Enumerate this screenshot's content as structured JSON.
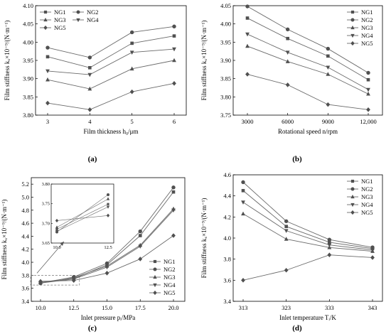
{
  "chart_data": [
    {
      "type": "line",
      "panel_label": "(a)",
      "xlabel": "Film thickness h₀/μm",
      "ylabel": "Film stiffness kₓ×10⁻⁹/(N·m⁻¹)",
      "categories": [
        "3",
        "4",
        "5",
        "6"
      ],
      "ylim": [
        3.8,
        4.1
      ],
      "yticks": [
        "3.80",
        "3.85",
        "3.90",
        "3.95",
        "4.00",
        "4.05",
        "4.10"
      ],
      "yticks_values": [
        3.8,
        3.85,
        3.9,
        3.95,
        4.0,
        4.05,
        4.1
      ],
      "legend_position": "top-left",
      "series": [
        {
          "name": "NG1",
          "marker": "square",
          "values": [
            3.96,
            3.93,
            3.997,
            4.017
          ]
        },
        {
          "name": "NG2",
          "marker": "circle",
          "values": [
            3.985,
            3.958,
            4.027,
            4.043
          ]
        },
        {
          "name": "NG3",
          "marker": "triangle",
          "values": [
            3.897,
            3.872,
            3.927,
            3.95
          ]
        },
        {
          "name": "NG4",
          "marker": "tri-down",
          "values": [
            3.921,
            3.911,
            3.972,
            3.981
          ]
        },
        {
          "name": "NG5",
          "marker": "diamond",
          "values": [
            3.833,
            3.815,
            3.864,
            3.887
          ]
        }
      ]
    },
    {
      "type": "line",
      "panel_label": "(b)",
      "xlabel": "Rotational speed n/rpm",
      "ylabel": "Film stiffness kₓ×10⁻⁹/(N·m⁻¹)",
      "categories": [
        "3000",
        "6000",
        "9000",
        "12,000"
      ],
      "ylim": [
        3.75,
        4.05
      ],
      "yticks": [
        "3.75",
        "3.80",
        "3.85",
        "3.90",
        "3.95",
        "4.00",
        "4.05"
      ],
      "yticks_values": [
        3.75,
        3.8,
        3.85,
        3.9,
        3.95,
        4.0,
        4.05
      ],
      "legend_position": "top-right",
      "series": [
        {
          "name": "NG1",
          "marker": "square",
          "values": [
            4.016,
            3.96,
            3.912,
            3.847
          ]
        },
        {
          "name": "NG2",
          "marker": "circle",
          "values": [
            4.048,
            3.985,
            3.932,
            3.866
          ]
        },
        {
          "name": "NG3",
          "marker": "triangle",
          "values": [
            3.939,
            3.897,
            3.862,
            3.808
          ]
        },
        {
          "name": "NG4",
          "marker": "tri-down",
          "values": [
            3.972,
            3.922,
            3.881,
            3.82
          ]
        },
        {
          "name": "NG5",
          "marker": "diamond",
          "values": [
            3.862,
            3.833,
            3.779,
            3.765
          ]
        }
      ]
    },
    {
      "type": "line",
      "panel_label": "(c)",
      "xlabel": "Inlet pressure pᵢ/MPa",
      "ylabel": "Film stiffness kₓ×10⁻⁹/(N·m⁻¹)",
      "categories": [
        "10.0",
        "12.5",
        "15.0",
        "17.5",
        "20.0"
      ],
      "ylim": [
        3.4,
        5.3
      ],
      "yticks": [
        "3.4",
        "3.6",
        "3.8",
        "4.0",
        "4.2",
        "4.4",
        "4.6",
        "4.8",
        "5.0",
        "5.2"
      ],
      "yticks_values": [
        3.4,
        3.6,
        3.8,
        4.0,
        4.2,
        4.4,
        4.6,
        4.8,
        5.0,
        5.2
      ],
      "legend_position": "bottom-right",
      "series": [
        {
          "name": "NG1",
          "marker": "square",
          "values": [
            3.685,
            3.749,
            3.961,
            4.41,
            5.08
          ]
        },
        {
          "name": "NG2",
          "marker": "circle",
          "values": [
            3.678,
            3.773,
            3.984,
            4.475,
            5.15
          ]
        },
        {
          "name": "NG3",
          "marker": "triangle",
          "values": [
            3.69,
            3.762,
            3.942,
            4.262,
            4.82
          ]
        },
        {
          "name": "NG4",
          "marker": "tri-down",
          "values": [
            3.68,
            3.742,
            3.925,
            4.245,
            4.8
          ]
        },
        {
          "name": "NG5",
          "marker": "diamond",
          "values": [
            3.707,
            3.72,
            3.833,
            4.05,
            4.41
          ]
        }
      ],
      "inset": {
        "xticks": [
          "10.0",
          "12.5"
        ],
        "yticks": [
          "3.65",
          "3.70",
          "3.75",
          "3.80"
        ],
        "yticks_values": [
          3.65,
          3.7,
          3.75,
          3.8
        ],
        "ylim": [
          3.65,
          3.8
        ]
      }
    },
    {
      "type": "line",
      "panel_label": "(d)",
      "xlabel": "Inlet temperature Tᵢ/K",
      "ylabel": "Film stiffness kₓ×10⁻⁹/(N·m⁻¹)",
      "categories": [
        "313",
        "323",
        "333",
        "343"
      ],
      "ylim": [
        3.4,
        4.6
      ],
      "yticks": [
        "3.4",
        "3.6",
        "3.8",
        "4.0",
        "4.2",
        "4.4",
        "4.6"
      ],
      "yticks_values": [
        3.4,
        3.6,
        3.8,
        4.0,
        4.2,
        4.4,
        4.6
      ],
      "legend_position": "top-right",
      "series": [
        {
          "name": "NG1",
          "marker": "square",
          "values": [
            4.45,
            4.11,
            3.96,
            3.9
          ]
        },
        {
          "name": "NG2",
          "marker": "circle",
          "values": [
            4.53,
            4.16,
            3.985,
            3.912
          ]
        },
        {
          "name": "NG3",
          "marker": "triangle",
          "values": [
            4.23,
            3.99,
            3.91,
            3.875
          ]
        },
        {
          "name": "NG4",
          "marker": "tri-down",
          "values": [
            4.34,
            4.07,
            3.935,
            3.887
          ]
        },
        {
          "name": "NG5",
          "marker": "diamond",
          "values": [
            3.6,
            3.695,
            3.84,
            3.815
          ]
        }
      ]
    }
  ]
}
